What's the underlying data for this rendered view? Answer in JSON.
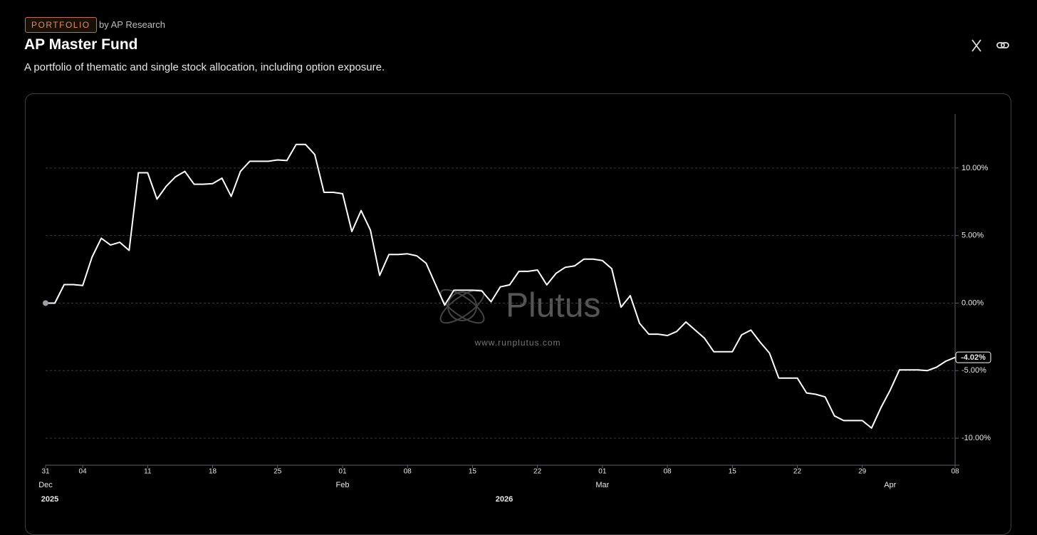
{
  "header": {
    "badge": "PORTFOLIO",
    "author": "by AP Research",
    "title": "AP Master Fund",
    "subtitle": "A portfolio of thematic and single stock allocation, including option exposure."
  },
  "watermark": {
    "brand": "Plutus",
    "url": "www.runplutus.com"
  },
  "chart_data": {
    "type": "line",
    "color": "#ffffff",
    "grid": true,
    "x": [
      "2025-12-31",
      "2026-01-01",
      "2026-01-02",
      "2026-01-03",
      "2026-01-04",
      "2026-01-05",
      "2026-01-06",
      "2026-01-07",
      "2026-01-08",
      "2026-01-09",
      "2026-01-10",
      "2026-01-11",
      "2026-01-12",
      "2026-01-13",
      "2026-01-14",
      "2026-01-15",
      "2026-01-16",
      "2026-01-17",
      "2026-01-18",
      "2026-01-19",
      "2026-01-20",
      "2026-01-21",
      "2026-01-22",
      "2026-01-23",
      "2026-01-24",
      "2026-01-25",
      "2026-01-26",
      "2026-01-27",
      "2026-01-28",
      "2026-01-29",
      "2026-01-30",
      "2026-01-31",
      "2026-02-01",
      "2026-02-02",
      "2026-02-03",
      "2026-02-04",
      "2026-02-05",
      "2026-02-06",
      "2026-02-07",
      "2026-02-08",
      "2026-02-09",
      "2026-02-10",
      "2026-02-11",
      "2026-02-12",
      "2026-02-13",
      "2026-02-14",
      "2026-02-15",
      "2026-02-16",
      "2026-02-17",
      "2026-02-18",
      "2026-02-19",
      "2026-02-20",
      "2026-02-21",
      "2026-02-22",
      "2026-02-23",
      "2026-02-24",
      "2026-02-25",
      "2026-02-26",
      "2026-02-27",
      "2026-02-28",
      "2026-03-01",
      "2026-03-02",
      "2026-03-03",
      "2026-03-04",
      "2026-03-05",
      "2026-03-06",
      "2026-03-07",
      "2026-03-08",
      "2026-03-09",
      "2026-03-10",
      "2026-03-11",
      "2026-03-12",
      "2026-03-13",
      "2026-03-14",
      "2026-03-15",
      "2026-03-16",
      "2026-03-17",
      "2026-03-18",
      "2026-03-19",
      "2026-03-20",
      "2026-03-21",
      "2026-03-22",
      "2026-03-23",
      "2026-03-24",
      "2026-03-25",
      "2026-03-26",
      "2026-03-27",
      "2026-03-28",
      "2026-03-29",
      "2026-03-30",
      "2026-03-31",
      "2026-04-01",
      "2026-04-02",
      "2026-04-03",
      "2026-04-04",
      "2026-04-05",
      "2026-04-06",
      "2026-04-07",
      "2026-04-08"
    ],
    "values": [
      0,
      0,
      1.37,
      1.37,
      1.3,
      3.4,
      4.8,
      4.3,
      4.5,
      3.9,
      9.65,
      9.65,
      7.7,
      8.65,
      9.35,
      9.75,
      8.8,
      8.8,
      8.85,
      9.25,
      7.9,
      9.75,
      10.5,
      10.5,
      10.5,
      10.6,
      10.55,
      11.75,
      11.75,
      11.0,
      8.2,
      8.2,
      8.1,
      5.3,
      6.85,
      5.4,
      2.05,
      3.6,
      3.6,
      3.65,
      3.5,
      2.95,
      1.4,
      -0.15,
      0.95,
      0.95,
      0.95,
      0.9,
      0.1,
      1.2,
      1.35,
      2.35,
      2.35,
      2.45,
      1.35,
      2.2,
      2.65,
      2.75,
      3.25,
      3.25,
      3.15,
      2.55,
      -0.3,
      0.55,
      -1.5,
      -2.3,
      -2.3,
      -2.4,
      -2.1,
      -1.4,
      -2.0,
      -2.6,
      -3.6,
      -3.6,
      -3.6,
      -2.35,
      -2.0,
      -2.9,
      -3.7,
      -5.55,
      -5.55,
      -5.55,
      -6.65,
      -6.75,
      -6.95,
      -8.35,
      -8.7,
      -8.7,
      -8.7,
      -9.25,
      -7.75,
      -6.45,
      -4.95,
      -4.95,
      -4.95,
      -5.0,
      -4.75,
      -4.3,
      -4.02
    ],
    "last_label": "-4.02%",
    "xlim": [
      "2025-12-31",
      "2026-04-08"
    ],
    "ylim": [
      -12,
      14
    ],
    "yticks": [
      {
        "value": 10,
        "label": "10.00%"
      },
      {
        "value": 5,
        "label": "5.00%"
      },
      {
        "value": 0,
        "label": "0.00%"
      },
      {
        "value": -5,
        "label": "-5.00%"
      },
      {
        "value": -10,
        "label": "-10.00%"
      }
    ],
    "xticks": [
      {
        "value": "2025-12-31",
        "label": "31"
      },
      {
        "value": "2026-01-04",
        "label": "04"
      },
      {
        "value": "2026-01-11",
        "label": "11"
      },
      {
        "value": "2026-01-18",
        "label": "18"
      },
      {
        "value": "2026-01-25",
        "label": "25"
      },
      {
        "value": "2026-02-01",
        "label": "01"
      },
      {
        "value": "2026-02-08",
        "label": "08"
      },
      {
        "value": "2026-02-15",
        "label": "15"
      },
      {
        "value": "2026-02-22",
        "label": "22"
      },
      {
        "value": "2026-03-01",
        "label": "01"
      },
      {
        "value": "2026-03-08",
        "label": "08"
      },
      {
        "value": "2026-03-15",
        "label": "15"
      },
      {
        "value": "2026-03-22",
        "label": "22"
      },
      {
        "value": "2026-03-29",
        "label": "29"
      },
      {
        "value": "2026-04-08",
        "label": "08"
      }
    ],
    "month_ticks": [
      {
        "value": "2025-12-31",
        "label": "Dec"
      },
      {
        "value": "2026-02-01",
        "label": "Feb"
      },
      {
        "value": "2026-03-01",
        "label": "Mar"
      },
      {
        "value": "2026-04-01",
        "label": "Apr"
      }
    ],
    "year_labels": [
      "2025",
      "2026"
    ]
  }
}
